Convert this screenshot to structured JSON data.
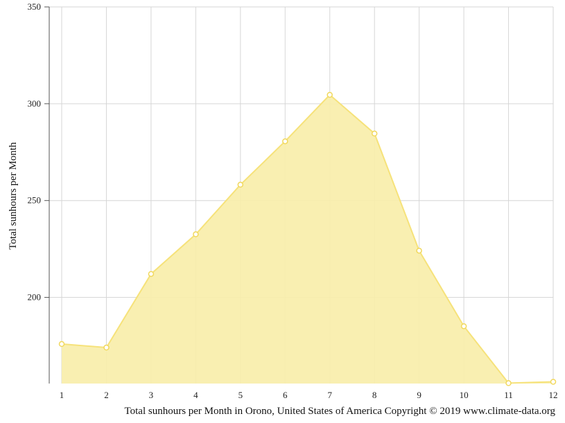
{
  "chart_data": {
    "type": "area",
    "title": "",
    "xlabel": "",
    "ylabel": "Total sunhours per Month",
    "caption": "Total sunhours per Month in Orono, United States of America Copyright © 2019 www.climate-data.org",
    "x": [
      "1",
      "2",
      "3",
      "4",
      "5",
      "6",
      "7",
      "8",
      "9",
      "10",
      "11",
      "12"
    ],
    "series": [
      {
        "values": [
          175.9,
          174.1,
          212.1,
          232.6,
          258.2,
          280.6,
          304.6,
          284.6,
          224.1,
          185.1,
          155.7,
          156.4
        ]
      }
    ],
    "yticks": [
      "200",
      "250",
      "300",
      "350"
    ],
    "ylim": [
      155.5,
      350
    ],
    "grid": true,
    "legend": "none",
    "colors": {
      "fill": "#f9eeaa",
      "line": "#f6e27a",
      "marker_fill": "#ffffff",
      "marker_stroke": "#f1d85c",
      "grid": "#d6d6d6",
      "axis": "#555555"
    }
  }
}
